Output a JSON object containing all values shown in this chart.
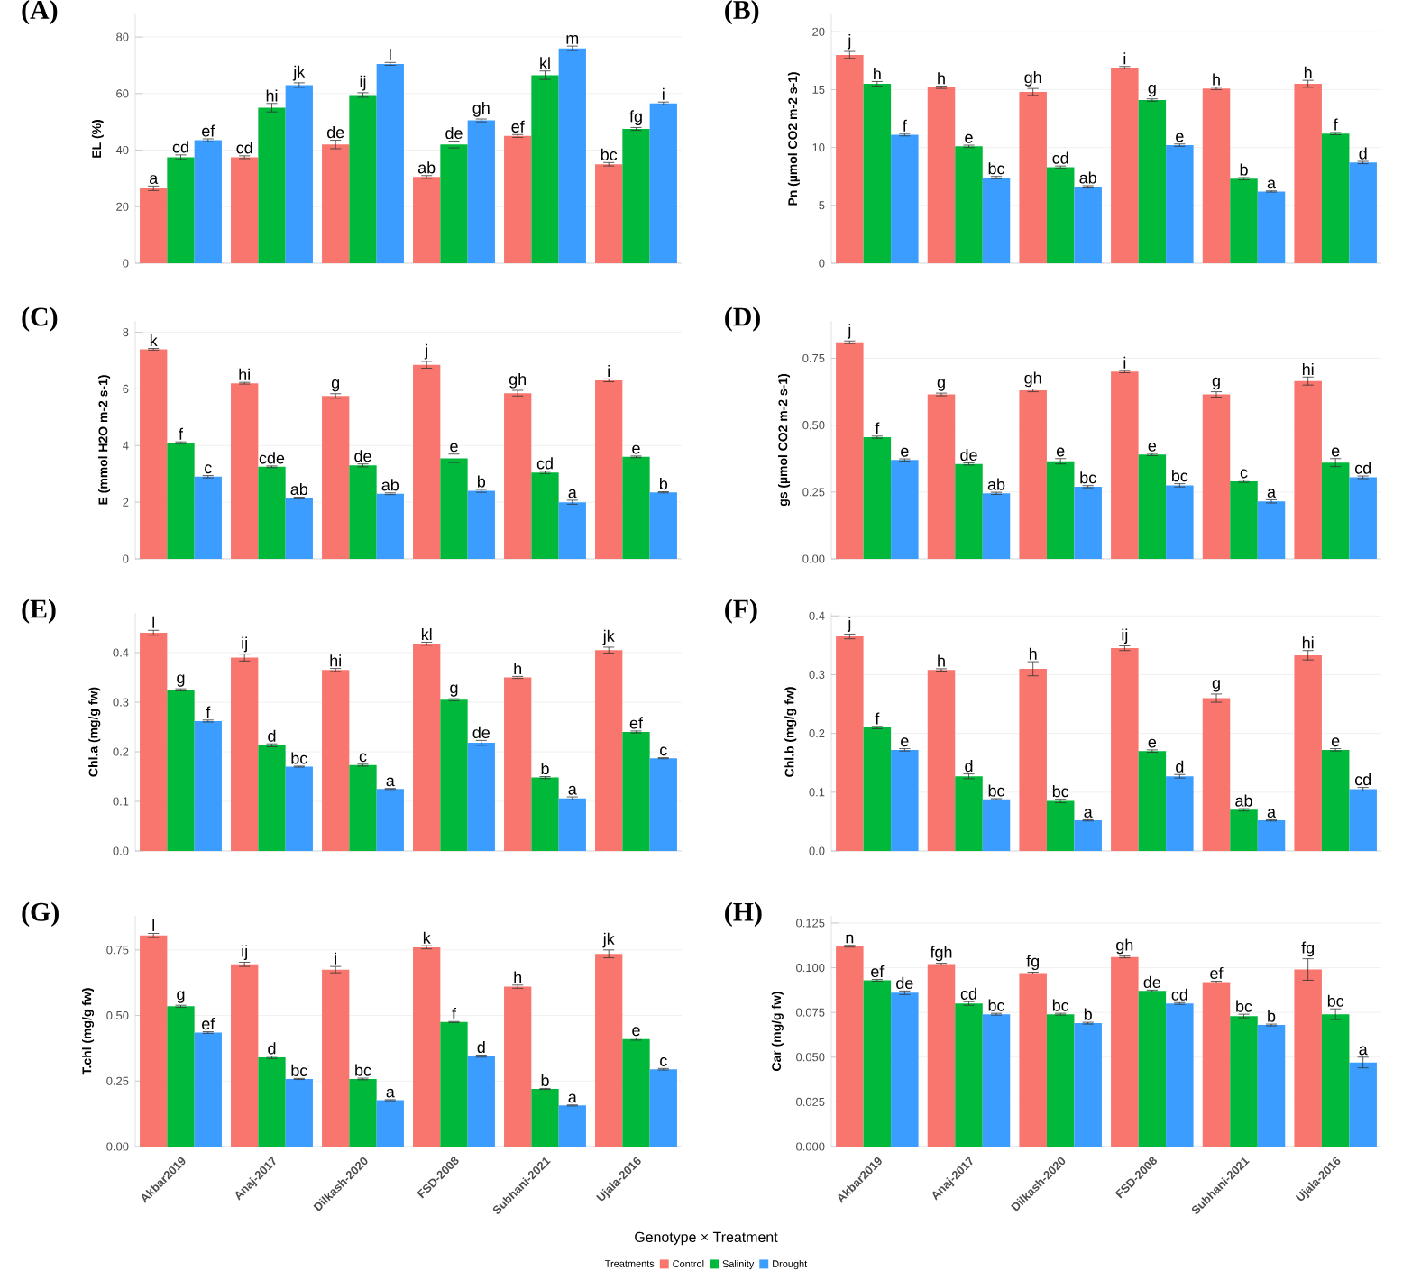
{
  "chart_data": [
    {
      "type": "bar",
      "title": "(A)",
      "ylabel": "EL (%)",
      "categories": [
        null,
        null,
        null,
        null,
        null,
        null
      ],
      "grid": "y",
      "ylim": [
        0,
        88
      ],
      "yticks": [
        0,
        20,
        40,
        60,
        80
      ],
      "series": [
        {
          "color": "#f8766d",
          "values": [
            26.5,
            37.5,
            42,
            30.5,
            45,
            35
          ],
          "errors": [
            0.8,
            0.5,
            1.5,
            0.5,
            0.5,
            0.6
          ],
          "value_labels": [
            "a",
            "cd",
            "de",
            "ab",
            "ef",
            "bc"
          ]
        },
        {
          "color": "#00b83a",
          "values": [
            37.5,
            55,
            59.5,
            42,
            66.5,
            47.5
          ],
          "errors": [
            0.8,
            1.5,
            0.8,
            1.2,
            1.5,
            0.5
          ],
          "value_labels": [
            "cd",
            "hi",
            "ij",
            "de",
            "kl",
            "fg"
          ]
        },
        {
          "color": "#3b9dff",
          "values": [
            43.5,
            63,
            70.5,
            50.5,
            76,
            56.5
          ],
          "errors": [
            0.5,
            0.8,
            0.5,
            0.5,
            0.8,
            0.5
          ],
          "value_labels": [
            "ef",
            "jk",
            "l",
            "gh",
            "m",
            "i"
          ]
        }
      ]
    },
    {
      "type": "bar",
      "title": "(B)",
      "ylabel": "Pn (µmol CO2 m-2 s-1)",
      "categories": [
        null,
        null,
        null,
        null,
        null,
        null
      ],
      "grid": "y",
      "ylim": [
        0,
        21.5
      ],
      "yticks": [
        0,
        5,
        10,
        15,
        20
      ],
      "series": [
        {
          "color": "#f8766d",
          "values": [
            18,
            15.2,
            14.8,
            16.9,
            15.1,
            15.5
          ],
          "errors": [
            0.3,
            0.1,
            0.3,
            0.1,
            0.1,
            0.3
          ],
          "value_labels": [
            "j",
            "h",
            "gh",
            "i",
            "h",
            "h"
          ]
        },
        {
          "color": "#00b83a",
          "values": [
            15.5,
            10.1,
            8.3,
            14.1,
            7.3,
            11.2
          ],
          "errors": [
            0.2,
            0.1,
            0.1,
            0.1,
            0.1,
            0.1
          ],
          "value_labels": [
            "h",
            "e",
            "cd",
            "g",
            "b",
            "f"
          ]
        },
        {
          "color": "#3b9dff",
          "values": [
            11.1,
            7.4,
            6.6,
            10.2,
            6.2,
            8.7
          ],
          "errors": [
            0.1,
            0.1,
            0.1,
            0.1,
            0.05,
            0.1
          ],
          "value_labels": [
            "f",
            "bc",
            "ab",
            "e",
            "a",
            "d"
          ]
        }
      ]
    },
    {
      "type": "bar",
      "title": "(C)",
      "ylabel": "E (mmol H2O m-2 s-1)",
      "categories": [
        null,
        null,
        null,
        null,
        null,
        null
      ],
      "grid": "y",
      "ylim": [
        0,
        8.4
      ],
      "yticks": [
        0,
        2,
        4,
        6,
        8
      ],
      "series": [
        {
          "color": "#f8766d",
          "values": [
            7.4,
            6.2,
            5.75,
            6.85,
            5.85,
            6.3
          ],
          "errors": [
            0.03,
            0.03,
            0.08,
            0.12,
            0.1,
            0.05
          ],
          "value_labels": [
            "k",
            "hi",
            "g",
            "j",
            "gh",
            "i"
          ]
        },
        {
          "color": "#00b83a",
          "values": [
            4.1,
            3.25,
            3.3,
            3.55,
            3.05,
            3.6
          ],
          "errors": [
            0.03,
            0.03,
            0.05,
            0.15,
            0.04,
            0.03
          ],
          "value_labels": [
            "f",
            "cde",
            "de",
            "e",
            "cd",
            "e"
          ]
        },
        {
          "color": "#3b9dff",
          "values": [
            2.9,
            2.15,
            2.3,
            2.4,
            2.0,
            2.35
          ],
          "errors": [
            0.04,
            0.03,
            0.03,
            0.05,
            0.07,
            0.02
          ],
          "value_labels": [
            "c",
            "ab",
            "ab",
            "b",
            "a",
            "b"
          ]
        }
      ]
    },
    {
      "type": "bar",
      "title": "(D)",
      "ylabel": "gs (µmol CO2 m-2 s-1)",
      "categories": [
        null,
        null,
        null,
        null,
        null,
        null
      ],
      "grid": "y",
      "ylim": [
        0,
        0.89
      ],
      "yticks": [
        {
          "value": 0,
          "label": "0.00"
        },
        {
          "value": 0.25,
          "label": "0.25"
        },
        {
          "value": 0.5,
          "label": "0.50"
        },
        {
          "value": 0.75,
          "label": "0.75"
        }
      ],
      "series": [
        {
          "color": "#f8766d",
          "values": [
            0.81,
            0.615,
            0.63,
            0.7,
            0.615,
            0.665
          ],
          "errors": [
            0.005,
            0.005,
            0.005,
            0.004,
            0.01,
            0.015
          ],
          "value_labels": [
            "j",
            "g",
            "gh",
            "i",
            "g",
            "hi"
          ]
        },
        {
          "color": "#00b83a",
          "values": [
            0.455,
            0.355,
            0.365,
            0.39,
            0.29,
            0.36
          ],
          "errors": [
            0.004,
            0.004,
            0.01,
            0.004,
            0.004,
            0.015
          ],
          "value_labels": [
            "f",
            "de",
            "e",
            "e",
            "c",
            "e"
          ]
        },
        {
          "color": "#3b9dff",
          "values": [
            0.37,
            0.245,
            0.27,
            0.275,
            0.215,
            0.305
          ],
          "errors": [
            0.004,
            0.004,
            0.004,
            0.006,
            0.006,
            0.005
          ],
          "value_labels": [
            "e",
            "ab",
            "bc",
            "bc",
            "a",
            "cd"
          ]
        }
      ]
    },
    {
      "type": "bar",
      "title": "(E)",
      "ylabel": "Chl.a (mg/g fw)",
      "categories": [
        null,
        null,
        null,
        null,
        null,
        null
      ],
      "grid": "y",
      "ylim": [
        0,
        0.48
      ],
      "yticks": [
        {
          "value": 0,
          "label": "0.0"
        },
        {
          "value": 0.1,
          "label": "0.1"
        },
        {
          "value": 0.2,
          "label": "0.2"
        },
        {
          "value": 0.3,
          "label": "0.3"
        },
        {
          "value": 0.4,
          "label": "0.4"
        }
      ],
      "series": [
        {
          "color": "#f8766d",
          "values": [
            0.44,
            0.39,
            0.365,
            0.418,
            0.35,
            0.405
          ],
          "errors": [
            0.005,
            0.007,
            0.003,
            0.003,
            0.002,
            0.006
          ],
          "value_labels": [
            "l",
            "ij",
            "hi",
            "kl",
            "h",
            "jk"
          ]
        },
        {
          "color": "#00b83a",
          "values": [
            0.325,
            0.213,
            0.173,
            0.305,
            0.148,
            0.24
          ],
          "errors": [
            0.002,
            0.003,
            0.002,
            0.002,
            0.002,
            0.002
          ],
          "value_labels": [
            "g",
            "d",
            "c",
            "g",
            "b",
            "ef"
          ]
        },
        {
          "color": "#3b9dff",
          "values": [
            0.262,
            0.17,
            0.125,
            0.218,
            0.106,
            0.187
          ],
          "errors": [
            0.002,
            0.001,
            0.001,
            0.005,
            0.003,
            0.001
          ],
          "value_labels": [
            "f",
            "bc",
            "a",
            "de",
            "a",
            "c"
          ]
        }
      ]
    },
    {
      "type": "bar",
      "title": "(F)",
      "ylabel": "Chl.b (mg/g fw)",
      "categories": [
        null,
        null,
        null,
        null,
        null,
        null
      ],
      "grid": "y",
      "ylim": [
        0,
        0.405
      ],
      "yticks": [
        {
          "value": 0,
          "label": "0.0"
        },
        {
          "value": 0.1,
          "label": "0.1"
        },
        {
          "value": 0.2,
          "label": "0.2"
        },
        {
          "value": 0.3,
          "label": "0.3"
        },
        {
          "value": 0.4,
          "label": "0.4"
        }
      ],
      "series": [
        {
          "color": "#f8766d",
          "values": [
            0.365,
            0.308,
            0.31,
            0.345,
            0.26,
            0.333
          ],
          "errors": [
            0.004,
            0.002,
            0.012,
            0.004,
            0.007,
            0.008
          ],
          "value_labels": [
            "j",
            "h",
            "h",
            "ij",
            "g",
            "hi"
          ]
        },
        {
          "color": "#00b83a",
          "values": [
            0.21,
            0.127,
            0.085,
            0.17,
            0.07,
            0.172
          ],
          "errors": [
            0.002,
            0.004,
            0.003,
            0.002,
            0.002,
            0.002
          ],
          "value_labels": [
            "f",
            "d",
            "bc",
            "e",
            "ab",
            "e"
          ]
        },
        {
          "color": "#3b9dff",
          "values": [
            0.172,
            0.088,
            0.052,
            0.127,
            0.052,
            0.105
          ],
          "errors": [
            0.002,
            0.001,
            0.001,
            0.003,
            0.001,
            0.003
          ],
          "value_labels": [
            "e",
            "bc",
            "a",
            "d",
            "a",
            "cd"
          ]
        }
      ]
    },
    {
      "type": "bar",
      "title": "(G)",
      "ylabel": "T.chl (mg/g fw)",
      "categories": [
        "Akbar2019",
        "Anaj-2017",
        "Dilkash-2020",
        "FSD-2008",
        "Subhani-2021",
        "Ujala-2016"
      ],
      "grid": "y",
      "ylim": [
        0,
        0.88
      ],
      "yticks": [
        {
          "value": 0,
          "label": "0.00"
        },
        {
          "value": 0.25,
          "label": "0.25"
        },
        {
          "value": 0.5,
          "label": "0.50"
        },
        {
          "value": 0.75,
          "label": "0.75"
        }
      ],
      "series": [
        {
          "color": "#f8766d",
          "values": [
            0.805,
            0.695,
            0.675,
            0.76,
            0.61,
            0.735
          ],
          "errors": [
            0.008,
            0.008,
            0.012,
            0.006,
            0.006,
            0.015
          ],
          "value_labels": [
            "l",
            "ij",
            "i",
            "k",
            "h",
            "jk"
          ]
        },
        {
          "color": "#00b83a",
          "values": [
            0.535,
            0.34,
            0.258,
            0.475,
            0.22,
            0.41
          ],
          "errors": [
            0.004,
            0.004,
            0.003,
            0.002,
            0.002,
            0.004
          ],
          "value_labels": [
            "g",
            "d",
            "bc",
            "f",
            "b",
            "e"
          ]
        },
        {
          "color": "#3b9dff",
          "values": [
            0.435,
            0.258,
            0.177,
            0.345,
            0.157,
            0.295
          ],
          "errors": [
            0.003,
            0.002,
            0.002,
            0.004,
            0.002,
            0.003
          ],
          "value_labels": [
            "ef",
            "bc",
            "a",
            "d",
            "a",
            "c"
          ]
        }
      ]
    },
    {
      "type": "bar",
      "title": "(H)",
      "ylabel": "Car (mg/g fw)",
      "xlabel": "Genotype × Treatment",
      "legend": "bottom",
      "legend_title": "Treatments",
      "categories": [
        "Akbar2019",
        "Anaj-2017",
        "Dilkash-2020",
        "FSD-2008",
        "Subhani-2021",
        "Ujala-2016"
      ],
      "grid": "y",
      "ylim": [
        0,
        0.129
      ],
      "yticks": [
        {
          "value": 0,
          "label": "0.000"
        },
        {
          "value": 0.025,
          "label": "0.025"
        },
        {
          "value": 0.05,
          "label": "0.050"
        },
        {
          "value": 0.075,
          "label": "0.075"
        },
        {
          "value": 0.1,
          "label": "0.100"
        },
        {
          "value": 0.125,
          "label": "0.125"
        }
      ],
      "series": [
        {
          "name": "Control",
          "color": "#f8766d",
          "values": [
            0.112,
            0.102,
            0.097,
            0.106,
            0.092,
            0.099
          ],
          "errors": [
            0.0005,
            0.0005,
            0.0005,
            0.0005,
            0.0005,
            0.006
          ],
          "value_labels": [
            "n",
            "fgh",
            "fg",
            "gh",
            "ef",
            "fg"
          ]
        },
        {
          "name": "Salinity",
          "color": "#00b83a",
          "values": [
            0.093,
            0.08,
            0.074,
            0.087,
            0.073,
            0.074
          ],
          "errors": [
            0.0005,
            0.001,
            0.0005,
            0.0005,
            0.001,
            0.003
          ],
          "value_labels": [
            "ef",
            "cd",
            "bc",
            "de",
            "bc",
            "bc"
          ]
        },
        {
          "name": "Drought",
          "color": "#3b9dff",
          "values": [
            0.086,
            0.074,
            0.069,
            0.08,
            0.068,
            0.047
          ],
          "errors": [
            0.001,
            0.0005,
            0.0005,
            0.0005,
            0.0005,
            0.003
          ],
          "value_labels": [
            "de",
            "bc",
            "b",
            "cd",
            "b",
            "a"
          ]
        }
      ]
    }
  ]
}
